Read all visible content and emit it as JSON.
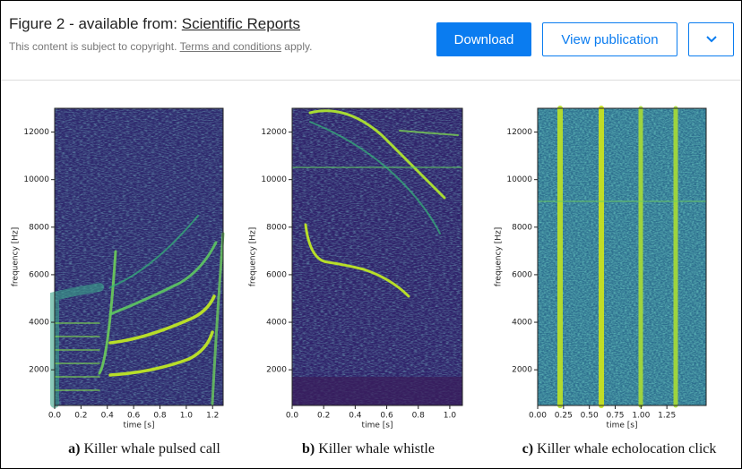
{
  "header": {
    "title": "Figure 2 - available from:",
    "source": "Scientific Reports",
    "notice_start": "This content is subject to copyright.",
    "notice_link": "Terms and conditions",
    "notice_end": "apply."
  },
  "buttons": {
    "download": "Download",
    "view": "View publication"
  },
  "panels": [
    {
      "letter": "a)",
      "caption": "Killer whale pulsed call",
      "x_label": "time [s]",
      "y_label": "frequency [Hz]",
      "xlim": [
        0,
        1.28
      ],
      "ylim": [
        500,
        13000
      ],
      "xticks": [
        {
          "value": 0,
          "label": "0.0"
        },
        0.2,
        0.4,
        0.6,
        0.8,
        {
          "value": 1,
          "label": "1.0"
        },
        1.2
      ],
      "yticks": [
        2000,
        4000,
        6000,
        8000,
        10000,
        12000
      ]
    },
    {
      "letter": "b)",
      "caption": "Killer whale whistle",
      "x_label": "time [s]",
      "y_label": "frequency [Hz]",
      "xlim": [
        0,
        1.08
      ],
      "ylim": [
        500,
        13000
      ],
      "xticks": [
        {
          "value": 0,
          "label": "0.0"
        },
        0.2,
        0.4,
        0.6,
        0.8,
        {
          "value": 1,
          "label": "1.0"
        }
      ],
      "yticks": [
        2000,
        4000,
        6000,
        8000,
        10000,
        12000
      ]
    },
    {
      "letter": "c)",
      "caption": "Killer whale echolocation click",
      "x_label": "time [s]",
      "y_label": "frequency [Hz]",
      "xlim": [
        0,
        1.63
      ],
      "ylim": [
        500,
        13000
      ],
      "xticks": [
        {
          "value": 0,
          "label": "0.00"
        },
        0.25,
        {
          "value": 0.5,
          "label": "0.50"
        },
        0.75,
        {
          "value": 1,
          "label": "1.00"
        },
        1.25
      ],
      "yticks": [
        2000,
        4000,
        6000,
        8000,
        10000,
        12000
      ]
    }
  ]
}
